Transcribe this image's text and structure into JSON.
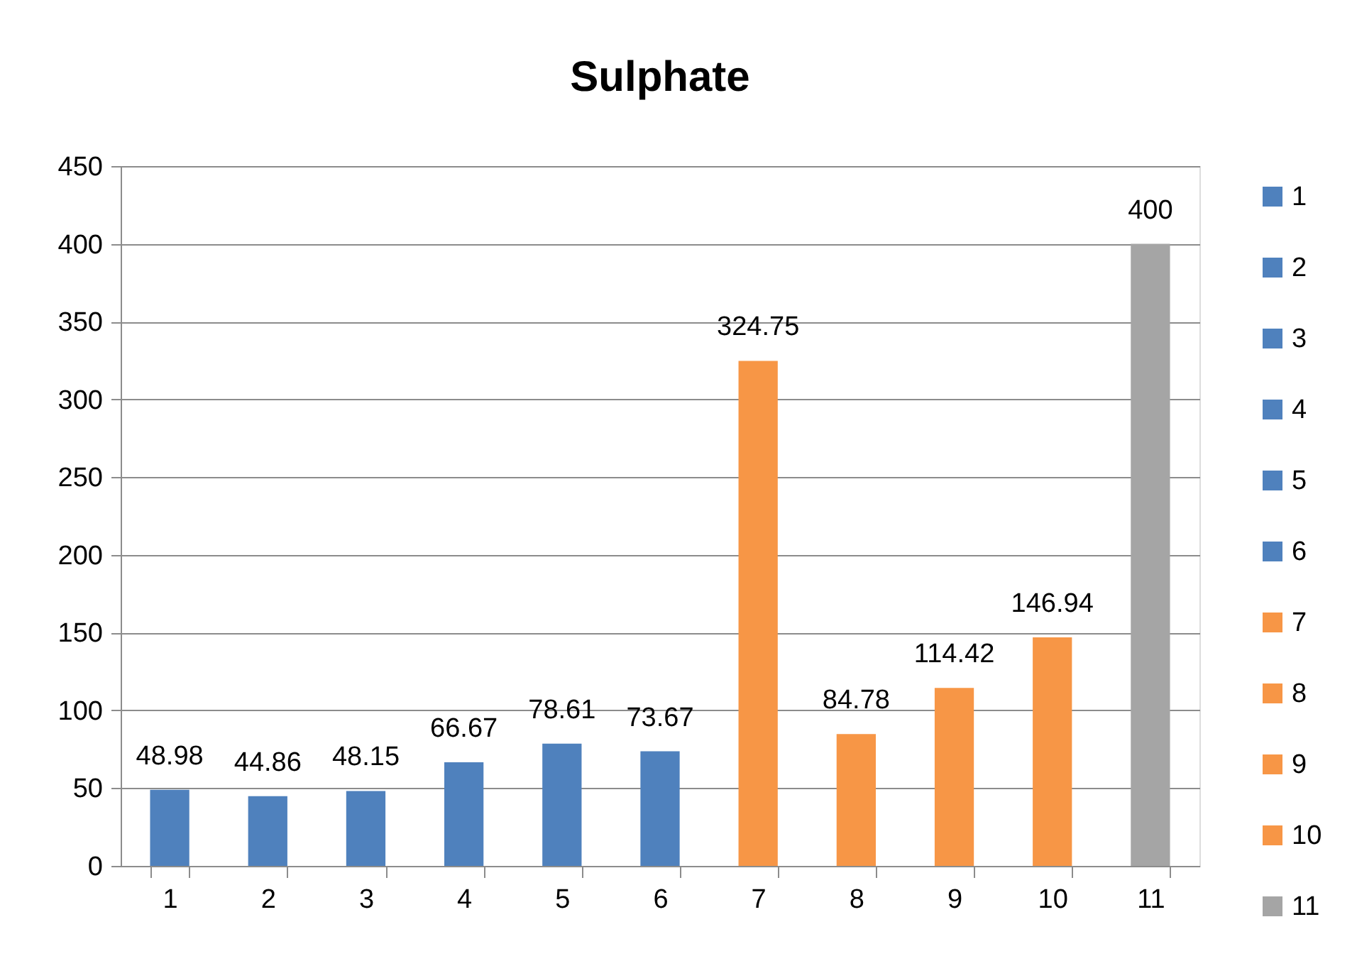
{
  "chart_data": {
    "type": "bar",
    "title": "Sulphate",
    "categories": [
      "1",
      "2",
      "3",
      "4",
      "5",
      "6",
      "7",
      "8",
      "9",
      "10",
      "11"
    ],
    "stacked": true,
    "series": [
      {
        "name": "1",
        "color": "#4f81bd",
        "values": [
          48.98,
          null,
          null,
          null,
          null,
          null,
          null,
          null,
          null,
          null,
          null
        ]
      },
      {
        "name": "2",
        "color": "#4f81bd",
        "values": [
          null,
          44.86,
          null,
          null,
          null,
          null,
          null,
          null,
          null,
          null,
          null
        ]
      },
      {
        "name": "3",
        "color": "#4f81bd",
        "values": [
          null,
          null,
          48.15,
          null,
          null,
          null,
          null,
          null,
          null,
          null,
          null
        ]
      },
      {
        "name": "4",
        "color": "#4f81bd",
        "values": [
          null,
          null,
          null,
          66.67,
          null,
          null,
          null,
          null,
          null,
          null,
          null
        ]
      },
      {
        "name": "5",
        "color": "#4f81bd",
        "values": [
          null,
          null,
          null,
          null,
          78.61,
          null,
          null,
          null,
          null,
          null,
          null
        ]
      },
      {
        "name": "6",
        "color": "#4f81bd",
        "values": [
          null,
          null,
          null,
          null,
          null,
          73.67,
          null,
          null,
          null,
          null,
          null
        ]
      },
      {
        "name": "7",
        "color": "#f79646",
        "values": [
          null,
          null,
          null,
          null,
          null,
          null,
          324.75,
          null,
          null,
          null,
          null
        ]
      },
      {
        "name": "8",
        "color": "#f79646",
        "values": [
          null,
          null,
          null,
          null,
          null,
          null,
          null,
          84.78,
          null,
          null,
          null
        ]
      },
      {
        "name": "9",
        "color": "#f79646",
        "values": [
          null,
          null,
          null,
          null,
          null,
          null,
          null,
          null,
          114.42,
          null,
          null
        ]
      },
      {
        "name": "10",
        "color": "#f79646",
        "values": [
          null,
          null,
          null,
          null,
          null,
          null,
          null,
          null,
          null,
          146.94,
          null
        ]
      },
      {
        "name": "11",
        "color": "#a5a5a5",
        "values": [
          null,
          null,
          null,
          null,
          null,
          null,
          null,
          null,
          null,
          null,
          400
        ]
      }
    ],
    "ylim": [
      0,
      450
    ],
    "yticks": [
      0,
      50,
      100,
      150,
      200,
      250,
      300,
      350,
      400,
      450
    ],
    "grid": "y",
    "legend": "right",
    "data_labels": true
  }
}
